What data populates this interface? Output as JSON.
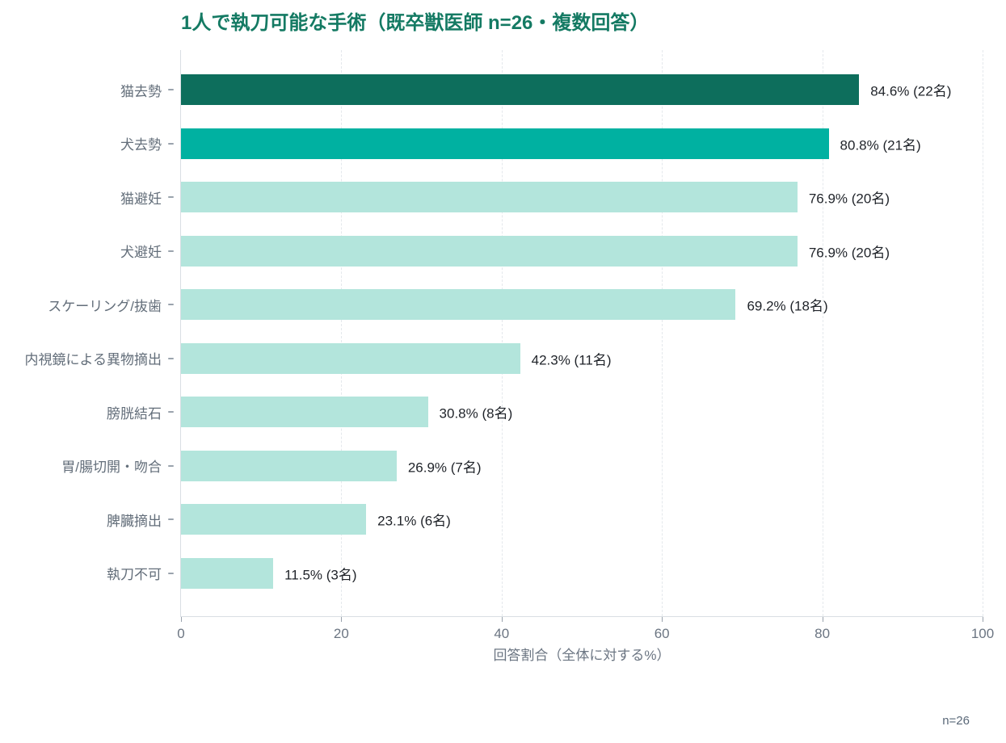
{
  "title": "1人で執刀可能な手術（既卒獣医師 n=26・複数回答）",
  "footnote": "n=26",
  "colors": {
    "title": "#147a63",
    "bar_rank1": "#0d6e5c",
    "bar_rank2": "#00b1a1",
    "bar_default": "#b3e5dc",
    "axis_line": "#d9dee3",
    "gridline": "#e4e8ec",
    "category_label": "#636e7a",
    "tick_label": "#6b7582",
    "value_label": "#1f2329",
    "footnote_text": "#5a6878"
  },
  "chart_data": {
    "type": "bar",
    "orientation": "horizontal",
    "title": "1人で執刀可能な手術（既卒獣医師 n=26・複数回答）",
    "categories": [
      "猫去勢",
      "犬去勢",
      "猫避妊",
      "犬避妊",
      "スケーリング/抜歯",
      "内視鏡による異物摘出",
      "膀胱結石",
      "胃/腸切開・吻合",
      "脾臓摘出",
      "執刀不可"
    ],
    "values": [
      84.6,
      80.8,
      76.9,
      76.9,
      69.2,
      42.3,
      30.8,
      26.9,
      23.1,
      11.5
    ],
    "counts": [
      22,
      21,
      20,
      20,
      18,
      11,
      8,
      7,
      6,
      3
    ],
    "value_labels": [
      "84.6% (22名)",
      "80.8% (21名)",
      "76.9% (20名)",
      "76.9% (20名)",
      "69.2% (18名)",
      "42.3% (11名)",
      "30.8% (8名)",
      "26.9% (7名)",
      "23.1% (6名)",
      "11.5% (3名)"
    ],
    "bar_colors": [
      "#0d6e5c",
      "#00b1a1",
      "#b3e5dc",
      "#b3e5dc",
      "#b3e5dc",
      "#b3e5dc",
      "#b3e5dc",
      "#b3e5dc",
      "#b3e5dc",
      "#b3e5dc"
    ],
    "xlabel": "回答割合（全体に対する%）",
    "x_ticks": [
      0,
      20,
      40,
      60,
      80,
      100
    ],
    "xlim": [
      0,
      100
    ],
    "grid": "dashed-vertical",
    "legend": "none",
    "sample_note": "n=26"
  }
}
